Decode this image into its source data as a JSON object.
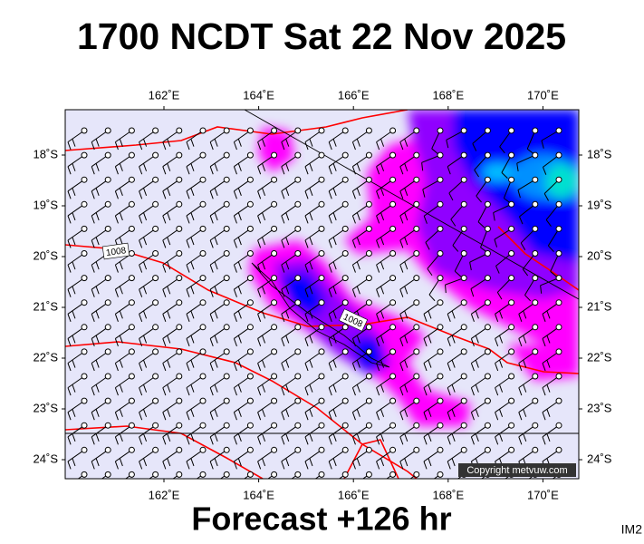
{
  "header": {
    "title": "1700 NCDT Sat 22 Nov 2025"
  },
  "map": {
    "lon_ticks": [
      {
        "value": 162,
        "label": "162˚E"
      },
      {
        "value": 164,
        "label": "164˚E"
      },
      {
        "value": 166,
        "label": "166˚E"
      },
      {
        "value": 168,
        "label": "168˚E"
      },
      {
        "value": 170,
        "label": "170˚E"
      }
    ],
    "lat_ticks": [
      {
        "value": 18,
        "label": "18˚S"
      },
      {
        "value": 19,
        "label": "19˚S"
      },
      {
        "value": 20,
        "label": "20˚S"
      },
      {
        "value": 21,
        "label": "21˚S"
      },
      {
        "value": 22,
        "label": "22˚S"
      },
      {
        "value": 23,
        "label": "23˚S"
      },
      {
        "value": 24,
        "label": "24˚S"
      }
    ],
    "isobar_labels": [
      "1008",
      "1008"
    ],
    "copyright": "Copyright metvuw.com"
  },
  "footer": {
    "forecast": "Forecast +126 hr",
    "code": "IM2"
  }
}
